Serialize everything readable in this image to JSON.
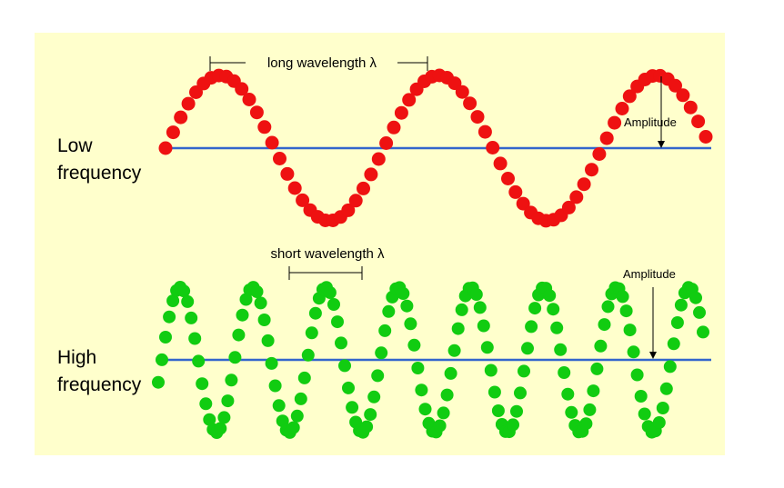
{
  "colors": {
    "background": "#ffffcc",
    "axis_line": "#3366cc",
    "low_wave": "#ee1111",
    "high_wave": "#11cc11"
  },
  "low_wave": {
    "label_line1": "Low",
    "label_line2": "frequency",
    "wavelength_label": "long wavelength λ",
    "amplitude_label": "Amplitude"
  },
  "high_wave": {
    "label_line1": "High",
    "label_line2": "frequency",
    "wavelength_label": "short wavelength λ",
    "amplitude_label": "Amplitude"
  }
}
